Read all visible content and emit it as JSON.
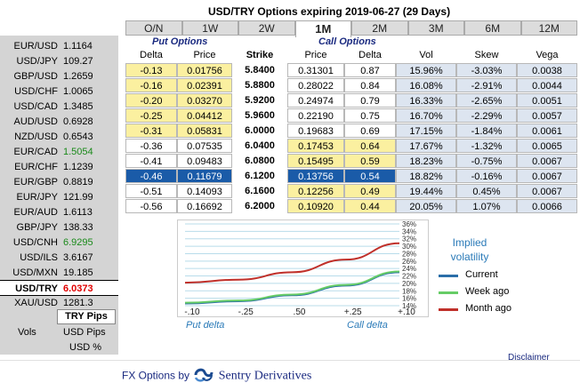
{
  "title": "USD/TRY Options expiring 2019-06-27 (29 Days)",
  "tabs": [
    "O/N",
    "1W",
    "2W",
    "1M",
    "2M",
    "3M",
    "6M",
    "12M"
  ],
  "active_tab": "1M",
  "pairs": [
    {
      "name": "EUR/USD",
      "rate": "1.1164",
      "color": "normal"
    },
    {
      "name": "USD/JPY",
      "rate": "109.27",
      "color": "normal"
    },
    {
      "name": "GBP/USD",
      "rate": "1.2659",
      "color": "normal"
    },
    {
      "name": "USD/CHF",
      "rate": "1.0065",
      "color": "normal"
    },
    {
      "name": "USD/CAD",
      "rate": "1.3485",
      "color": "normal"
    },
    {
      "name": "AUD/USD",
      "rate": "0.6928",
      "color": "normal"
    },
    {
      "name": "NZD/USD",
      "rate": "0.6543",
      "color": "normal"
    },
    {
      "name": "EUR/CAD",
      "rate": "1.5054",
      "color": "green"
    },
    {
      "name": "EUR/CHF",
      "rate": "1.1239",
      "color": "normal"
    },
    {
      "name": "EUR/GBP",
      "rate": "0.8819",
      "color": "normal"
    },
    {
      "name": "EUR/JPY",
      "rate": "121.99",
      "color": "normal"
    },
    {
      "name": "EUR/AUD",
      "rate": "1.6113",
      "color": "normal"
    },
    {
      "name": "GBP/JPY",
      "rate": "138.33",
      "color": "normal"
    },
    {
      "name": "USD/CNH",
      "rate": "6.9295",
      "color": "green"
    },
    {
      "name": "USD/ILS",
      "rate": "3.6167",
      "color": "normal"
    },
    {
      "name": "USD/MXN",
      "rate": "19.185",
      "color": "normal"
    },
    {
      "name": "USD/TRY",
      "rate": "6.0373",
      "color": "red",
      "selected": true
    },
    {
      "name": "XAU/USD",
      "rate": "1281.3",
      "color": "normal"
    }
  ],
  "pips_button": "TRY Pips",
  "vols_label": "Vols",
  "usd_pips": "USD Pips",
  "usd_pct": "USD %",
  "section_put": "Put Options",
  "section_call": "Call Options",
  "headers": {
    "put_delta": "Delta",
    "put_price": "Price",
    "strike": "Strike",
    "call_price": "Price",
    "call_delta": "Delta",
    "vol": "Vol",
    "skew": "Skew",
    "vega": "Vega"
  },
  "rows": [
    {
      "put_delta": "-0.13",
      "put_price": "0.01756",
      "strike": "5.8400",
      "call_price": "0.31301",
      "call_delta": "0.87",
      "vol": "15.96%",
      "skew": "-3.03%",
      "vega": "0.0038",
      "itm": "put"
    },
    {
      "put_delta": "-0.16",
      "put_price": "0.02391",
      "strike": "5.8800",
      "call_price": "0.28022",
      "call_delta": "0.84",
      "vol": "16.08%",
      "skew": "-2.91%",
      "vega": "0.0044",
      "itm": "put"
    },
    {
      "put_delta": "-0.20",
      "put_price": "0.03270",
      "strike": "5.9200",
      "call_price": "0.24974",
      "call_delta": "0.79",
      "vol": "16.33%",
      "skew": "-2.65%",
      "vega": "0.0051",
      "itm": "put"
    },
    {
      "put_delta": "-0.25",
      "put_price": "0.04412",
      "strike": "5.9600",
      "call_price": "0.22190",
      "call_delta": "0.75",
      "vol": "16.70%",
      "skew": "-2.29%",
      "vega": "0.0057",
      "itm": "put"
    },
    {
      "put_delta": "-0.31",
      "put_price": "0.05831",
      "strike": "6.0000",
      "call_price": "0.19683",
      "call_delta": "0.69",
      "vol": "17.15%",
      "skew": "-1.84%",
      "vega": "0.0061",
      "itm": "put"
    },
    {
      "put_delta": "-0.36",
      "put_price": "0.07535",
      "strike": "6.0400",
      "call_price": "0.17453",
      "call_delta": "0.64",
      "vol": "17.67%",
      "skew": "-1.32%",
      "vega": "0.0065",
      "itm": "call"
    },
    {
      "put_delta": "-0.41",
      "put_price": "0.09483",
      "strike": "6.0800",
      "call_price": "0.15495",
      "call_delta": "0.59",
      "vol": "18.23%",
      "skew": "-0.75%",
      "vega": "0.0067",
      "itm": "call"
    },
    {
      "put_delta": "-0.46",
      "put_price": "0.11679",
      "strike": "6.1200",
      "call_price": "0.13756",
      "call_delta": "0.54",
      "vol": "18.82%",
      "skew": "-0.16%",
      "vega": "0.0067",
      "itm": "sel"
    },
    {
      "put_delta": "-0.51",
      "put_price": "0.14093",
      "strike": "6.1600",
      "call_price": "0.12256",
      "call_delta": "0.49",
      "vol": "19.44%",
      "skew": "0.45%",
      "vega": "0.0067",
      "itm": "call"
    },
    {
      "put_delta": "-0.56",
      "put_price": "0.16692",
      "strike": "6.2000",
      "call_price": "0.10920",
      "call_delta": "0.44",
      "vol": "20.05%",
      "skew": "1.07%",
      "vega": "0.0066",
      "itm": "call"
    }
  ],
  "chart_data": {
    "type": "line",
    "title": "Implied volatility",
    "x_ticks": [
      "-.10",
      "-.25",
      ".50",
      "+.25",
      "+.10"
    ],
    "y_ticks": [
      "36%",
      "34%",
      "32%",
      "30%",
      "28%",
      "26%",
      "24%",
      "22%",
      "20%",
      "18%",
      "16%",
      "14%"
    ],
    "ylim": [
      14,
      36
    ],
    "series": [
      {
        "name": "Current",
        "color": "#2a6ea8",
        "values": [
          14.6,
          15.2,
          16.8,
          19.4,
          23.0
        ]
      },
      {
        "name": "Week ago",
        "color": "#66cc66",
        "values": [
          14.8,
          15.4,
          17.0,
          19.6,
          23.2
        ]
      },
      {
        "name": "Month ago",
        "color": "#c0302a",
        "values": [
          20.2,
          21.0,
          23.0,
          26.4,
          30.8
        ]
      }
    ],
    "xlabel_left": "Put delta",
    "xlabel_right": "Call delta"
  },
  "disclaimer": "Disclaimer",
  "footer_prefix": "FX Options by",
  "footer_brand": "Sentry Derivatives"
}
